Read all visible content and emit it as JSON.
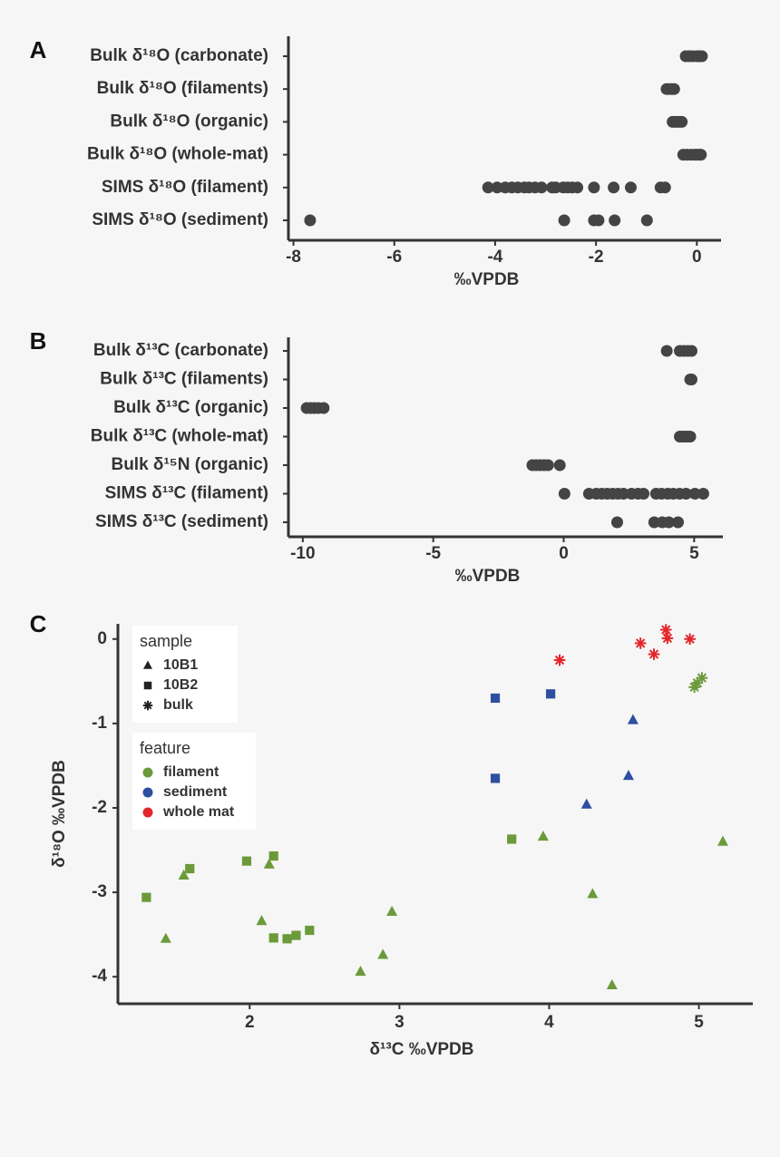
{
  "chart_data": [
    {
      "type": "strip",
      "panel_label": "A",
      "x_label": "‰VPDB",
      "categories": [
        "Bulk δ¹⁸O (carbonate)",
        "Bulk δ¹⁸O (filaments)",
        "Bulk δ¹⁸O (organic)",
        "Bulk δ¹⁸O (whole-mat)",
        "SIMS δ¹⁸O (filament)",
        "SIMS δ¹⁸O (sediment)"
      ],
      "values": [
        [
          -0.22,
          -0.15,
          -0.08,
          0.0,
          0.05,
          0.1
        ],
        [
          -0.6,
          -0.55,
          -0.5,
          -0.45
        ],
        [
          -0.48,
          -0.42,
          -0.36,
          -0.3
        ],
        [
          -0.27,
          -0.2,
          -0.12,
          -0.05,
          0.0,
          0.05,
          0.08
        ],
        [
          -4.14,
          -3.96,
          -3.8,
          -3.67,
          -3.55,
          -3.42,
          -3.33,
          -3.21,
          -3.08,
          -2.87,
          -2.8,
          -2.65,
          -2.56,
          -2.47,
          -2.37,
          -2.04,
          -1.65,
          -1.31,
          -0.72,
          -0.63
        ],
        [
          -7.67,
          -2.63,
          -2.04,
          -1.95,
          -1.63,
          -0.99
        ]
      ],
      "color": "#444444",
      "xlim": [
        -8.1,
        0.48
      ],
      "xticks": [
        -8,
        -6,
        -4,
        -2,
        0
      ]
    },
    {
      "type": "strip",
      "panel_label": "B",
      "x_label": "‰VPDB",
      "categories": [
        "Bulk δ¹³C (carbonate)",
        "Bulk δ¹³C (filaments)",
        "Bulk δ¹³C (organic)",
        "Bulk δ¹³C (whole-mat)",
        "Bulk δ¹⁵N (organic)",
        "SIMS δ¹³C (filament)",
        "SIMS δ¹³C (sediment)"
      ],
      "values": [
        [
          3.95,
          4.45,
          4.6,
          4.75,
          4.9
        ],
        [
          4.85,
          4.9
        ],
        [
          -9.85,
          -9.7,
          -9.55,
          -9.4,
          -9.2
        ],
        [
          4.45,
          4.55,
          4.65,
          4.75,
          4.85
        ],
        [
          -1.2,
          -1.05,
          -0.9,
          -0.75,
          -0.6,
          -0.15
        ],
        [
          0.03,
          0.97,
          1.25,
          1.46,
          1.67,
          1.88,
          2.08,
          2.29,
          2.6,
          2.85,
          3.06,
          3.54,
          3.75,
          3.99,
          4.2,
          4.44,
          4.69,
          5.03,
          5.35
        ],
        [
          2.05,
          3.47,
          3.78,
          4.03,
          4.38
        ]
      ],
      "color": "#444444",
      "xlim": [
        -10.55,
        6.1
      ],
      "xticks": [
        -10,
        -5,
        0,
        5
      ]
    },
    {
      "type": "scatter",
      "panel_label": "C",
      "x_label": "δ¹³C ‰VPDB",
      "y_label": "δ¹⁸O ‰VPDB",
      "xlim": [
        1.12,
        5.36
      ],
      "xticks": [
        2,
        3,
        4,
        5
      ],
      "ylim": [
        -4.32,
        0.18
      ],
      "yticks": [
        0,
        -1,
        -2,
        -3,
        -4
      ],
      "shape_legend": {
        "title": "sample",
        "items": [
          {
            "name": "10B1",
            "shape": "triangle"
          },
          {
            "name": "10B2",
            "shape": "square"
          },
          {
            "name": "bulk",
            "shape": "asterisk"
          }
        ]
      },
      "color_legend": {
        "title": "feature",
        "items": [
          {
            "name": "filament",
            "color": "#6b9a3a"
          },
          {
            "name": "sediment",
            "color": "#2e4ea1"
          },
          {
            "name": "whole mat",
            "color": "#e3262b"
          }
        ]
      },
      "series": [
        {
          "shape": "triangle",
          "color": "#6b9a3a",
          "x": [
            1.56,
            2.13,
            2.08,
            1.44,
            2.95,
            2.74,
            2.89,
            3.96,
            4.29,
            4.42,
            5.16
          ],
          "y": [
            -2.8,
            -2.67,
            -3.34,
            -3.55,
            -3.23,
            -3.94,
            -3.74,
            -2.34,
            -3.02,
            -4.1,
            -2.4
          ]
        },
        {
          "shape": "square",
          "color": "#6b9a3a",
          "x": [
            1.31,
            1.6,
            1.98,
            2.16,
            2.16,
            2.25,
            2.31,
            2.4,
            3.75
          ],
          "y": [
            -3.06,
            -2.72,
            -2.63,
            -2.57,
            -3.54,
            -3.55,
            -3.51,
            -3.45,
            -2.37
          ]
        },
        {
          "shape": "asterisk",
          "color": "#6b9a3a",
          "x": [
            4.97,
            4.99,
            5.02
          ],
          "y": [
            -0.57,
            -0.52,
            -0.46
          ]
        },
        {
          "shape": "square",
          "color": "#2e4ea1",
          "x": [
            3.64,
            4.01,
            3.64
          ],
          "y": [
            -0.7,
            -0.65,
            -1.65
          ]
        },
        {
          "shape": "triangle",
          "color": "#2e4ea1",
          "x": [
            4.56,
            4.53,
            4.25
          ],
          "y": [
            -0.96,
            -1.62,
            -1.96
          ]
        },
        {
          "shape": "asterisk",
          "color": "#e3262b",
          "x": [
            4.07,
            4.61,
            4.7,
            4.78,
            4.79,
            4.94
          ],
          "y": [
            -0.25,
            -0.05,
            -0.18,
            0.11,
            0.01,
            0.0
          ]
        }
      ]
    }
  ]
}
